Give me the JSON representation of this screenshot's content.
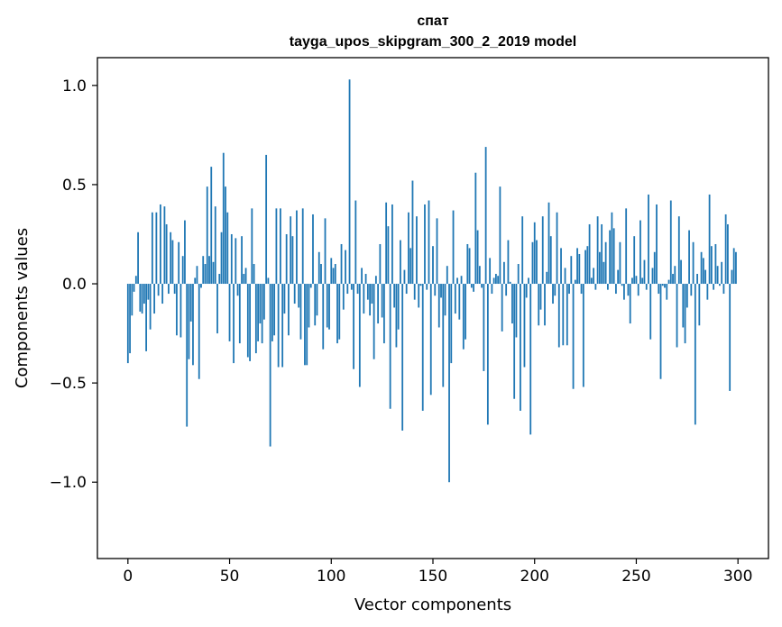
{
  "chart_data": {
    "type": "bar",
    "title": "спат",
    "subtitle": "tayga_upos_skipgram_300_2_2019 model",
    "xlabel": "Vector components",
    "ylabel": "Components values",
    "xlim": [
      -15,
      315
    ],
    "ylim": [
      -1.385,
      1.14
    ],
    "x_ticks": [
      0,
      50,
      100,
      150,
      200,
      250,
      300
    ],
    "x_tick_labels": [
      "0",
      "50",
      "100",
      "150",
      "200",
      "250",
      "300"
    ],
    "y_ticks": [
      1.0,
      0.5,
      0.0,
      -0.5,
      -1.0
    ],
    "y_tick_labels": [
      "1.0",
      "0.5",
      "0.0",
      "−0.5",
      "−1.0"
    ],
    "bar_color": "#1f77b4",
    "values": [
      -0.4,
      -0.35,
      -0.16,
      -0.04,
      0.04,
      0.26,
      -0.14,
      -0.15,
      -0.1,
      -0.34,
      -0.08,
      -0.23,
      0.36,
      -0.15,
      0.36,
      -0.06,
      0.4,
      -0.1,
      0.39,
      0.3,
      -0.05,
      0.26,
      0.22,
      -0.05,
      -0.26,
      0.21,
      -0.27,
      0.14,
      0.32,
      -0.72,
      -0.38,
      -0.19,
      -0.41,
      0.03,
      0.09,
      -0.48,
      -0.02,
      0.14,
      0.1,
      0.49,
      0.14,
      0.59,
      0.11,
      0.39,
      -0.25,
      0.05,
      0.26,
      0.66,
      0.49,
      0.36,
      -0.29,
      0.25,
      -0.4,
      0.23,
      -0.06,
      -0.3,
      0.24,
      0.05,
      0.08,
      -0.37,
      -0.39,
      0.38,
      0.1,
      -0.35,
      -0.29,
      -0.2,
      -0.3,
      -0.18,
      0.65,
      0.03,
      -0.82,
      -0.29,
      -0.26,
      0.38,
      -0.42,
      0.38,
      -0.42,
      -0.15,
      0.25,
      -0.26,
      0.34,
      0.24,
      -0.1,
      0.37,
      -0.12,
      -0.28,
      0.38,
      -0.41,
      -0.41,
      -0.22,
      -0.02,
      0.35,
      -0.21,
      -0.16,
      0.16,
      0.1,
      -0.33,
      0.33,
      -0.22,
      -0.23,
      0.13,
      0.08,
      0.1,
      -0.3,
      -0.28,
      0.2,
      -0.13,
      0.17,
      -0.05,
      1.03,
      -0.03,
      -0.43,
      0.42,
      -0.05,
      -0.52,
      0.08,
      -0.15,
      0.05,
      -0.08,
      -0.16,
      -0.1,
      -0.38,
      0.04,
      -0.2,
      0.2,
      -0.17,
      -0.3,
      0.41,
      0.29,
      -0.63,
      0.4,
      -0.12,
      -0.32,
      -0.23,
      0.22,
      -0.74,
      0.07,
      -0.05,
      0.36,
      0.18,
      0.52,
      -0.08,
      0.34,
      -0.12,
      -0.01,
      -0.64,
      0.4,
      -0.03,
      0.42,
      -0.56,
      0.19,
      -0.06,
      0.33,
      -0.22,
      -0.07,
      -0.52,
      -0.16,
      0.09,
      -1.0,
      -0.4,
      0.37,
      -0.15,
      0.03,
      -0.18,
      0.04,
      -0.33,
      -0.28,
      0.2,
      0.18,
      -0.02,
      -0.04,
      0.56,
      0.27,
      0.09,
      -0.02,
      -0.44,
      0.69,
      -0.71,
      0.13,
      -0.05,
      0.03,
      0.05,
      0.04,
      0.49,
      -0.24,
      0.11,
      -0.06,
      0.22,
      0.01,
      -0.2,
      -0.58,
      -0.27,
      0.1,
      -0.64,
      0.34,
      -0.42,
      -0.07,
      0.03,
      -0.76,
      0.21,
      0.31,
      0.22,
      -0.21,
      -0.13,
      0.34,
      -0.21,
      0.06,
      0.41,
      0.24,
      -0.1,
      -0.06,
      0.36,
      -0.32,
      0.18,
      -0.31,
      0.08,
      -0.31,
      -0.05,
      0.14,
      -0.53,
      0.02,
      0.18,
      0.15,
      -0.05,
      -0.52,
      0.17,
      0.19,
      0.3,
      0.03,
      0.08,
      -0.03,
      0.34,
      0.16,
      0.3,
      0.11,
      0.21,
      -0.03,
      0.27,
      0.36,
      0.28,
      -0.05,
      0.07,
      0.21,
      -0.01,
      -0.08,
      0.38,
      -0.06,
      -0.2,
      0.03,
      0.24,
      0.04,
      -0.06,
      0.32,
      0.03,
      0.12,
      -0.03,
      0.45,
      -0.28,
      0.08,
      0.16,
      0.4,
      -0.05,
      -0.48,
      -0.01,
      -0.02,
      -0.08,
      0.02,
      0.42,
      0.05,
      0.09,
      -0.32,
      0.34,
      0.12,
      -0.22,
      -0.3,
      -0.12,
      0.27,
      -0.06,
      0.21,
      -0.71,
      0.05,
      -0.21,
      0.16,
      0.13,
      0.07,
      -0.08,
      0.45,
      0.19,
      -0.03,
      0.2,
      0.09,
      -0.01,
      0.11,
      -0.05,
      0.35,
      0.3,
      -0.54,
      0.07,
      0.18,
      0.16
    ]
  }
}
